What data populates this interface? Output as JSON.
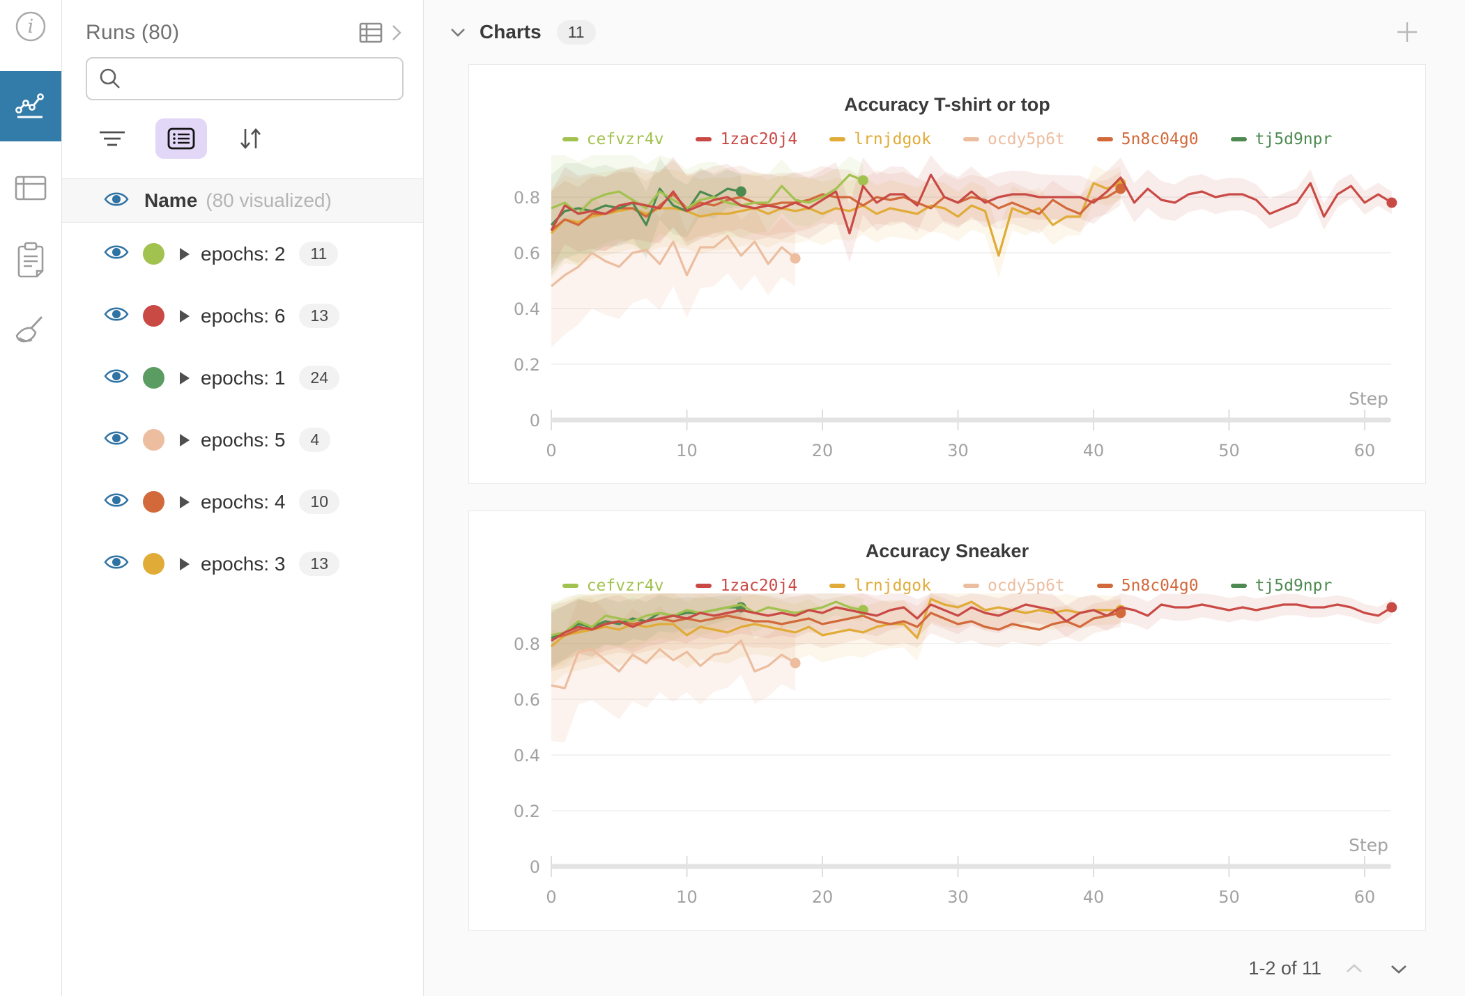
{
  "rail": {
    "items": [
      "info",
      "workspace-charts",
      "table",
      "notes",
      "sweep-broom"
    ]
  },
  "runs_panel": {
    "title": "Runs (80)",
    "search": {
      "value": "",
      "placeholder": ""
    },
    "header_row": {
      "name": "Name",
      "subtitle": "(80 visualized)"
    },
    "rows": [
      {
        "label": "epochs: 2",
        "count": "11",
        "color": "#a2c24f"
      },
      {
        "label": "epochs: 6",
        "count": "13",
        "color": "#c94a45"
      },
      {
        "label": "epochs: 1",
        "count": "24",
        "color": "#5b9c63"
      },
      {
        "label": "epochs: 5",
        "count": "4",
        "color": "#ecbd9f"
      },
      {
        "label": "epochs: 4",
        "count": "10",
        "color": "#d2693b"
      },
      {
        "label": "epochs: 3",
        "count": "13",
        "color": "#e0ab37"
      }
    ]
  },
  "main": {
    "section_title": "Charts",
    "section_count": "11",
    "pagination": {
      "label": "1-2 of 11"
    }
  },
  "colors": {
    "rail_selected": "#337ca9",
    "eye_icon": "#2f72a4",
    "list_button_bg": "#e3d7f8",
    "grid_line": "#ededed",
    "axis_bar": "#e3e3e3",
    "tick_label": "#a2a2a2"
  },
  "chart_data": [
    {
      "type": "line",
      "title": "Accuracy T-shirt or top",
      "xlabel": "Step",
      "ylabel": "",
      "xlim": [
        0,
        63
      ],
      "ylim": [
        0,
        0.95
      ],
      "x_ticks": [
        0,
        10,
        20,
        30,
        40,
        50,
        60
      ],
      "y_ticks": [
        0,
        0.2,
        0.4,
        0.6,
        0.8
      ],
      "grid": "horizontal",
      "legend_position": "top",
      "series": [
        {
          "name": "cefvzr4v",
          "color": "#a2c24f",
          "band": [
            0.2,
            0.06
          ],
          "band_opacity": 0.1,
          "values": [
            0.76,
            0.78,
            0.74,
            0.79,
            0.81,
            0.82,
            0.79,
            0.76,
            0.82,
            0.79,
            0.76,
            0.79,
            0.8,
            0.78,
            0.77,
            0.78,
            0.78,
            0.84,
            0.79,
            0.78,
            0.8,
            0.83,
            0.88,
            0.86
          ]
        },
        {
          "name": "1zac20j4",
          "color": "#c94a45",
          "band": [
            0.14,
            0.04
          ],
          "band_opacity": 0.1,
          "values": [
            0.68,
            0.77,
            0.74,
            0.75,
            0.74,
            0.77,
            0.78,
            0.77,
            0.76,
            0.82,
            0.75,
            0.77,
            0.79,
            0.8,
            0.77,
            0.76,
            0.77,
            0.76,
            0.78,
            0.76,
            0.79,
            0.82,
            0.67,
            0.84,
            0.78,
            0.81,
            0.81,
            0.77,
            0.88,
            0.8,
            0.78,
            0.82,
            0.78,
            0.8,
            0.81,
            0.81,
            0.8,
            0.8,
            0.8,
            0.8,
            0.78,
            0.82,
            0.87,
            0.78,
            0.83,
            0.79,
            0.78,
            0.81,
            0.82,
            0.8,
            0.81,
            0.81,
            0.79,
            0.74,
            0.76,
            0.78,
            0.85,
            0.73,
            0.81,
            0.84,
            0.78,
            0.81,
            0.78
          ]
        },
        {
          "name": "lrnjdgok",
          "color": "#e0ab37",
          "band": [
            0.16,
            0.06
          ],
          "band_opacity": 0.1,
          "values": [
            0.67,
            0.72,
            0.71,
            0.73,
            0.74,
            0.75,
            0.76,
            0.74,
            0.76,
            0.76,
            0.75,
            0.73,
            0.74,
            0.74,
            0.75,
            0.76,
            0.74,
            0.76,
            0.75,
            0.76,
            0.74,
            0.76,
            0.75,
            0.77,
            0.74,
            0.76,
            0.75,
            0.74,
            0.77,
            0.76,
            0.73,
            0.77,
            0.75,
            0.59,
            0.76,
            0.74,
            0.76,
            0.7,
            0.73,
            0.73,
            0.85,
            0.83,
            0.85
          ]
        },
        {
          "name": "ocdy5p6t",
          "color": "#ecbd9f",
          "band": [
            0.22,
            0.1
          ],
          "band_opacity": 0.18,
          "values": [
            0.48,
            0.52,
            0.55,
            0.6,
            0.57,
            0.55,
            0.6,
            0.61,
            0.56,
            0.64,
            0.52,
            0.62,
            0.62,
            0.66,
            0.59,
            0.64,
            0.56,
            0.62,
            0.58
          ]
        },
        {
          "name": "5n8c04g0",
          "color": "#d2693b",
          "band": [
            0.14,
            0.06
          ],
          "band_opacity": 0.1,
          "values": [
            0.68,
            0.72,
            0.7,
            0.74,
            0.74,
            0.76,
            0.76,
            0.73,
            0.77,
            0.81,
            0.76,
            0.78,
            0.77,
            0.79,
            0.8,
            0.78,
            0.77,
            0.78,
            0.78,
            0.79,
            0.81,
            0.8,
            0.8,
            0.77,
            0.8,
            0.79,
            0.8,
            0.78,
            0.76,
            0.8,
            0.78,
            0.8,
            0.79,
            0.76,
            0.78,
            0.76,
            0.74,
            0.79,
            0.76,
            0.74,
            0.79,
            0.8,
            0.83
          ]
        },
        {
          "name": "tj5d9npr",
          "color": "#4d8a50",
          "band": [
            0.18,
            0.06
          ],
          "band_opacity": 0.1,
          "values": [
            0.7,
            0.75,
            0.76,
            0.75,
            0.77,
            0.76,
            0.78,
            0.7,
            0.83,
            0.77,
            0.75,
            0.82,
            0.8,
            0.83,
            0.82
          ]
        }
      ]
    },
    {
      "type": "line",
      "title": "Accuracy Sneaker",
      "xlabel": "Step",
      "ylabel": "",
      "xlim": [
        0,
        63
      ],
      "ylim": [
        0,
        0.98
      ],
      "x_ticks": [
        0,
        10,
        20,
        30,
        40,
        50,
        60
      ],
      "y_ticks": [
        0,
        0.2,
        0.4,
        0.6,
        0.8
      ],
      "grid": "horizontal",
      "legend_position": "top",
      "series": [
        {
          "name": "cefvzr4v",
          "color": "#a2c24f",
          "band": [
            0.12,
            0.04
          ],
          "band_opacity": 0.1,
          "values": [
            0.83,
            0.84,
            0.88,
            0.86,
            0.9,
            0.89,
            0.88,
            0.9,
            0.91,
            0.9,
            0.92,
            0.91,
            0.92,
            0.93,
            0.94,
            0.91,
            0.93,
            0.92,
            0.91,
            0.92,
            0.93,
            0.95,
            0.93,
            0.92
          ]
        },
        {
          "name": "1zac20j4",
          "color": "#c94a45",
          "band": [
            0.1,
            0.03
          ],
          "band_opacity": 0.1,
          "values": [
            0.81,
            0.84,
            0.86,
            0.85,
            0.87,
            0.88,
            0.86,
            0.88,
            0.89,
            0.9,
            0.89,
            0.91,
            0.9,
            0.91,
            0.92,
            0.91,
            0.9,
            0.91,
            0.9,
            0.92,
            0.91,
            0.93,
            0.92,
            0.91,
            0.9,
            0.92,
            0.93,
            0.89,
            0.94,
            0.92,
            0.9,
            0.93,
            0.91,
            0.9,
            0.92,
            0.94,
            0.93,
            0.92,
            0.88,
            0.91,
            0.92,
            0.9,
            0.93,
            0.92,
            0.9,
            0.94,
            0.93,
            0.93,
            0.94,
            0.93,
            0.92,
            0.93,
            0.92,
            0.93,
            0.94,
            0.94,
            0.93,
            0.93,
            0.94,
            0.93,
            0.91,
            0.9,
            0.93
          ]
        },
        {
          "name": "lrnjdgok",
          "color": "#e0ab37",
          "band": [
            0.14,
            0.05
          ],
          "band_opacity": 0.1,
          "values": [
            0.79,
            0.83,
            0.84,
            0.85,
            0.86,
            0.85,
            0.87,
            0.86,
            0.87,
            0.87,
            0.83,
            0.86,
            0.85,
            0.84,
            0.86,
            0.87,
            0.86,
            0.85,
            0.84,
            0.86,
            0.83,
            0.84,
            0.85,
            0.84,
            0.86,
            0.87,
            0.87,
            0.82,
            0.96,
            0.94,
            0.93,
            0.95,
            0.92,
            0.93,
            0.92,
            0.91,
            0.92,
            0.91,
            0.92,
            0.91,
            0.92,
            0.92,
            0.92
          ]
        },
        {
          "name": "ocdy5p6t",
          "color": "#ecbd9f",
          "band": [
            0.2,
            0.1
          ],
          "band_opacity": 0.18,
          "values": [
            0.65,
            0.64,
            0.77,
            0.78,
            0.74,
            0.7,
            0.76,
            0.73,
            0.78,
            0.74,
            0.77,
            0.72,
            0.76,
            0.77,
            0.81,
            0.7,
            0.72,
            0.76,
            0.73
          ]
        },
        {
          "name": "5n8c04g0",
          "color": "#d2693b",
          "band": [
            0.12,
            0.05
          ],
          "band_opacity": 0.1,
          "values": [
            0.82,
            0.83,
            0.85,
            0.86,
            0.87,
            0.88,
            0.87,
            0.88,
            0.89,
            0.88,
            0.89,
            0.88,
            0.89,
            0.9,
            0.89,
            0.88,
            0.88,
            0.87,
            0.88,
            0.89,
            0.87,
            0.88,
            0.89,
            0.9,
            0.88,
            0.87,
            0.88,
            0.86,
            0.91,
            0.89,
            0.87,
            0.88,
            0.86,
            0.85,
            0.87,
            0.86,
            0.85,
            0.87,
            0.88,
            0.86,
            0.89,
            0.9,
            0.91
          ]
        },
        {
          "name": "tj5d9npr",
          "color": "#4d8a50",
          "band": [
            0.1,
            0.04
          ],
          "band_opacity": 0.1,
          "values": [
            0.82,
            0.84,
            0.87,
            0.86,
            0.88,
            0.87,
            0.89,
            0.88,
            0.91,
            0.9,
            0.91,
            0.91,
            0.92,
            0.93,
            0.93
          ]
        }
      ]
    }
  ]
}
